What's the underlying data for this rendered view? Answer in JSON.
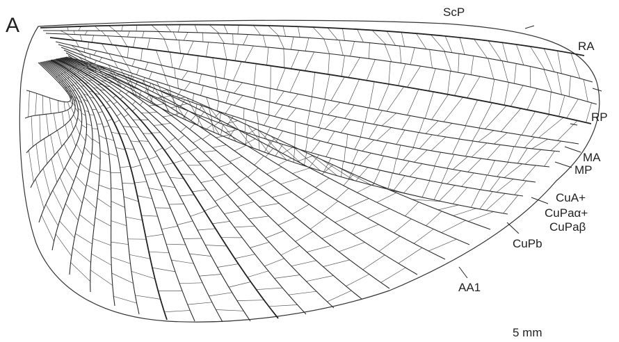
{
  "figure": {
    "panel_letter": "A",
    "scale_bar_label": "5 mm",
    "vein_labels": {
      "scp": "ScP",
      "ra": "RA",
      "rp": "RP",
      "ma": "MA",
      "mp": "MP",
      "cua_line1": "CuA+",
      "cua_line2": "CuPaα+",
      "cua_line3": "CuPaβ",
      "cupb": "CuPb",
      "aa1": "AA1"
    }
  }
}
